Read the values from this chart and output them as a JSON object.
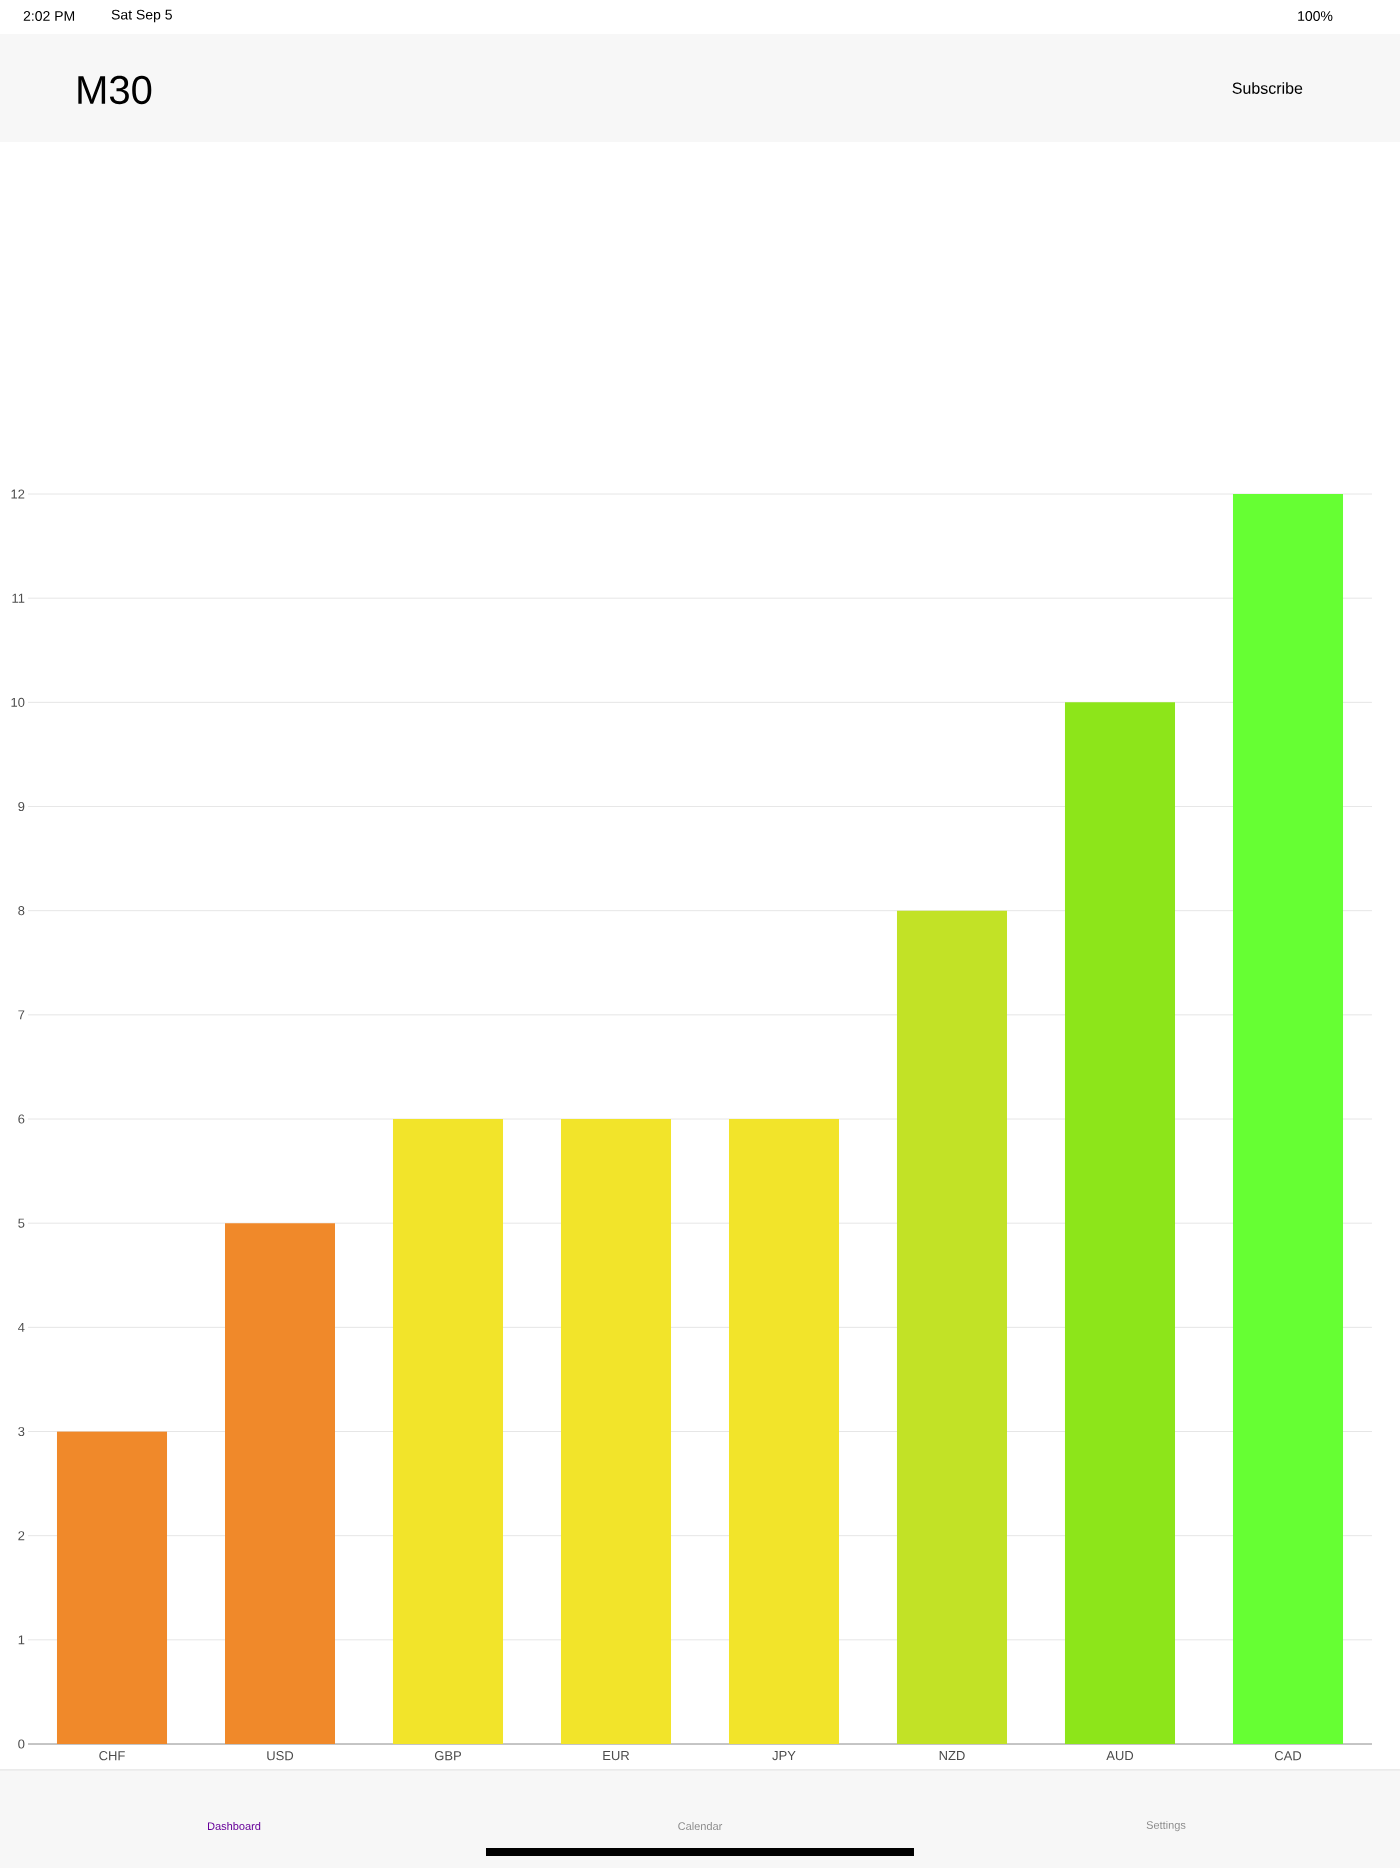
{
  "chart_data": {
    "type": "bar",
    "title": "M30",
    "categories": [
      "CHF",
      "USD",
      "GBP",
      "EUR",
      "JPY",
      "NZD",
      "AUD",
      "CAD"
    ],
    "values": [
      3,
      5,
      6,
      6,
      6,
      8,
      10,
      12
    ],
    "colors": [
      "#f0892a",
      "#f0892a",
      "#f2e42a",
      "#f2e42a",
      "#f2e42a",
      "#c2e226",
      "#8de51a",
      "#66ff33"
    ],
    "ylim": [
      0,
      12
    ],
    "yticks": [
      0,
      1,
      2,
      3,
      4,
      5,
      6,
      7,
      8,
      9,
      10,
      11,
      12
    ],
    "grid": "y",
    "annotations": [
      "2:02 PM",
      "Sat Sep 5",
      "100%",
      "Subscribe",
      "Dashboard",
      "Calendar",
      "Settings"
    ]
  }
}
